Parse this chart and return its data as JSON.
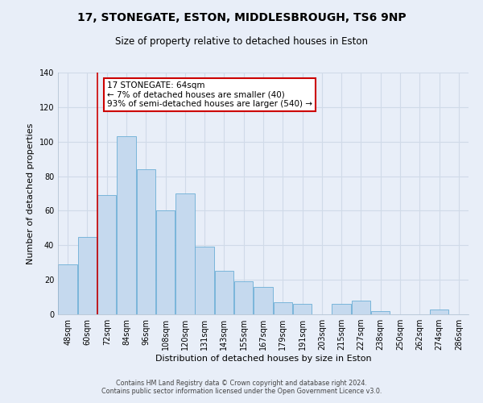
{
  "title": "17, STONEGATE, ESTON, MIDDLESBROUGH, TS6 9NP",
  "subtitle": "Size of property relative to detached houses in Eston",
  "xlabel": "Distribution of detached houses by size in Eston",
  "ylabel": "Number of detached properties",
  "bar_color": "#c5d9ee",
  "bar_edge_color": "#6baed6",
  "categories": [
    "48sqm",
    "60sqm",
    "72sqm",
    "84sqm",
    "96sqm",
    "108sqm",
    "120sqm",
    "131sqm",
    "143sqm",
    "155sqm",
    "167sqm",
    "179sqm",
    "191sqm",
    "203sqm",
    "215sqm",
    "227sqm",
    "238sqm",
    "250sqm",
    "262sqm",
    "274sqm",
    "286sqm"
  ],
  "values": [
    29,
    45,
    69,
    103,
    84,
    60,
    70,
    39,
    25,
    19,
    16,
    7,
    6,
    0,
    6,
    8,
    2,
    0,
    0,
    3,
    0
  ],
  "vline_x_idx": 1.5,
  "vline_color": "#cc0000",
  "annotation_text": "17 STONEGATE: 64sqm\n← 7% of detached houses are smaller (40)\n93% of semi-detached houses are larger (540) →",
  "annotation_box_facecolor": "#ffffff",
  "annotation_box_edgecolor": "#cc0000",
  "ylim": [
    0,
    140
  ],
  "yticks": [
    0,
    20,
    40,
    60,
    80,
    100,
    120,
    140
  ],
  "footer_line1": "Contains HM Land Registry data © Crown copyright and database right 2024.",
  "footer_line2": "Contains public sector information licensed under the Open Government Licence v3.0.",
  "bg_color": "#e8eef8",
  "grid_color": "#d0dae8",
  "title_fontsize": 10,
  "subtitle_fontsize": 8.5,
  "tick_fontsize": 7,
  "ylabel_fontsize": 8,
  "xlabel_fontsize": 8,
  "ann_fontsize": 7.5
}
